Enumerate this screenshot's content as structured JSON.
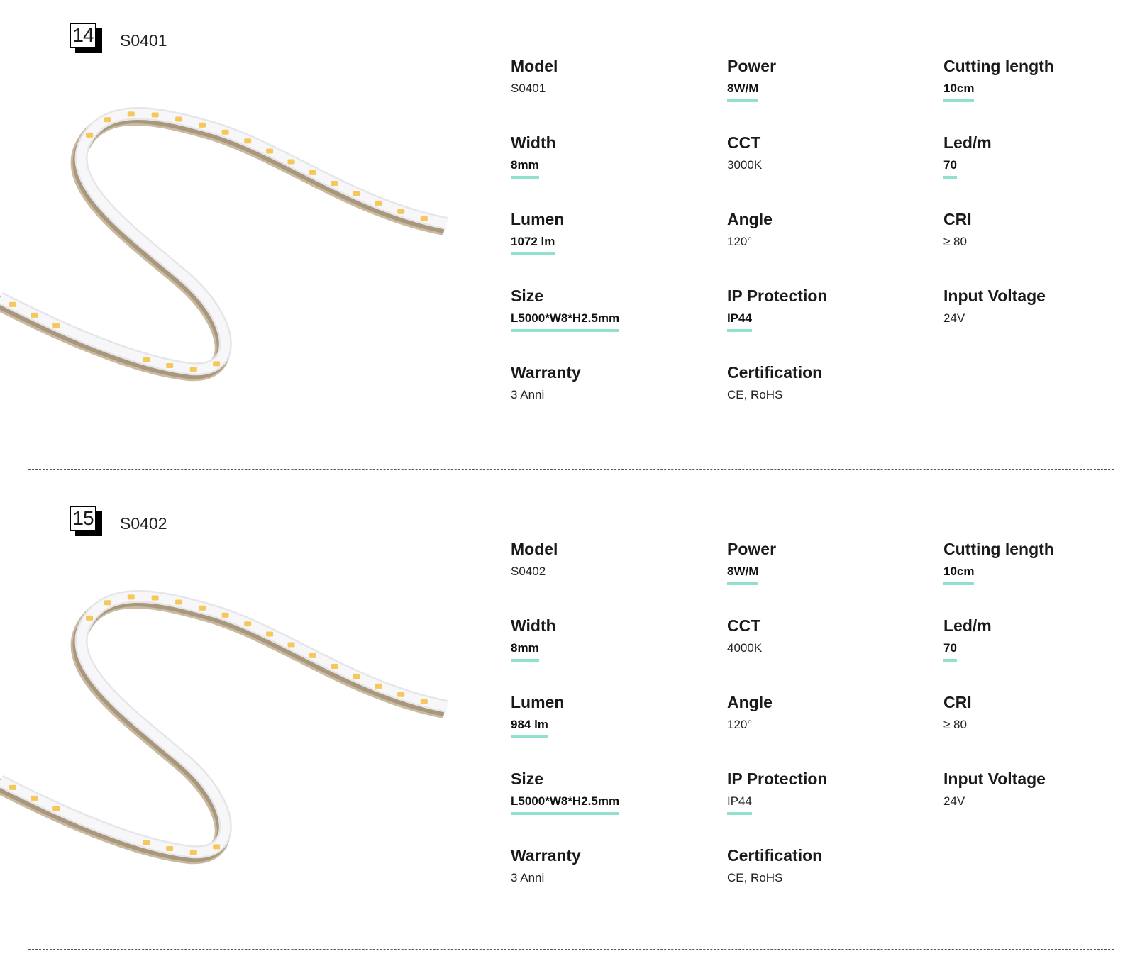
{
  "accent_color": "#8fe0cc",
  "products": [
    {
      "number": "14",
      "title": "S0401",
      "image_icon": "led-strip-image",
      "specs": [
        {
          "label": "Model",
          "value": "S0401",
          "bold": false,
          "underline": false
        },
        {
          "label": "Power",
          "value": "8W/M",
          "bold": true,
          "underline": true
        },
        {
          "label": "Cutting length",
          "value": "10cm",
          "bold": true,
          "underline": true
        },
        {
          "label": "Width",
          "value": "8mm",
          "bold": true,
          "underline": true
        },
        {
          "label": "CCT",
          "value": "3000K",
          "bold": false,
          "underline": false
        },
        {
          "label": "Led/m",
          "value": "70",
          "bold": true,
          "underline": true
        },
        {
          "label": "Lumen",
          "value": "1072 lm",
          "bold": true,
          "underline": true
        },
        {
          "label": "Angle",
          "value": "120°",
          "bold": false,
          "underline": false
        },
        {
          "label": "CRI",
          "value": "≥ 80",
          "bold": false,
          "underline": false
        },
        {
          "label": "Size",
          "value": "L5000*W8*H2.5mm",
          "bold": true,
          "underline": true
        },
        {
          "label": "IP Protection",
          "value": "IP44",
          "bold": true,
          "underline": true
        },
        {
          "label": "Input Voltage",
          "value": "24V",
          "bold": false,
          "underline": false
        },
        {
          "label": "Warranty",
          "value": "3 Anni",
          "bold": false,
          "underline": false
        },
        {
          "label": "Certification",
          "value": "CE, RoHS",
          "bold": false,
          "underline": false
        }
      ]
    },
    {
      "number": "15",
      "title": "S0402",
      "image_icon": "led-strip-image",
      "specs": [
        {
          "label": "Model",
          "value": "S0402",
          "bold": false,
          "underline": false
        },
        {
          "label": "Power",
          "value": "8W/M",
          "bold": true,
          "underline": true
        },
        {
          "label": "Cutting length",
          "value": "10cm",
          "bold": true,
          "underline": true
        },
        {
          "label": "Width",
          "value": "8mm",
          "bold": true,
          "underline": true
        },
        {
          "label": "CCT",
          "value": "4000K",
          "bold": false,
          "underline": false
        },
        {
          "label": "Led/m",
          "value": "70",
          "bold": true,
          "underline": true
        },
        {
          "label": "Lumen",
          "value": "984 lm",
          "bold": true,
          "underline": true
        },
        {
          "label": "Angle",
          "value": "120°",
          "bold": false,
          "underline": false
        },
        {
          "label": "CRI",
          "value": "≥ 80",
          "bold": false,
          "underline": false
        },
        {
          "label": "Size",
          "value": "L5000*W8*H2.5mm",
          "bold": true,
          "underline": true
        },
        {
          "label": "IP Protection",
          "value": "IP44",
          "bold": false,
          "underline": true
        },
        {
          "label": "Input Voltage",
          "value": "24V",
          "bold": false,
          "underline": false
        },
        {
          "label": "Warranty",
          "value": "3 Anni",
          "bold": false,
          "underline": false
        },
        {
          "label": "Certification",
          "value": "CE, RoHS",
          "bold": false,
          "underline": false
        }
      ]
    }
  ]
}
